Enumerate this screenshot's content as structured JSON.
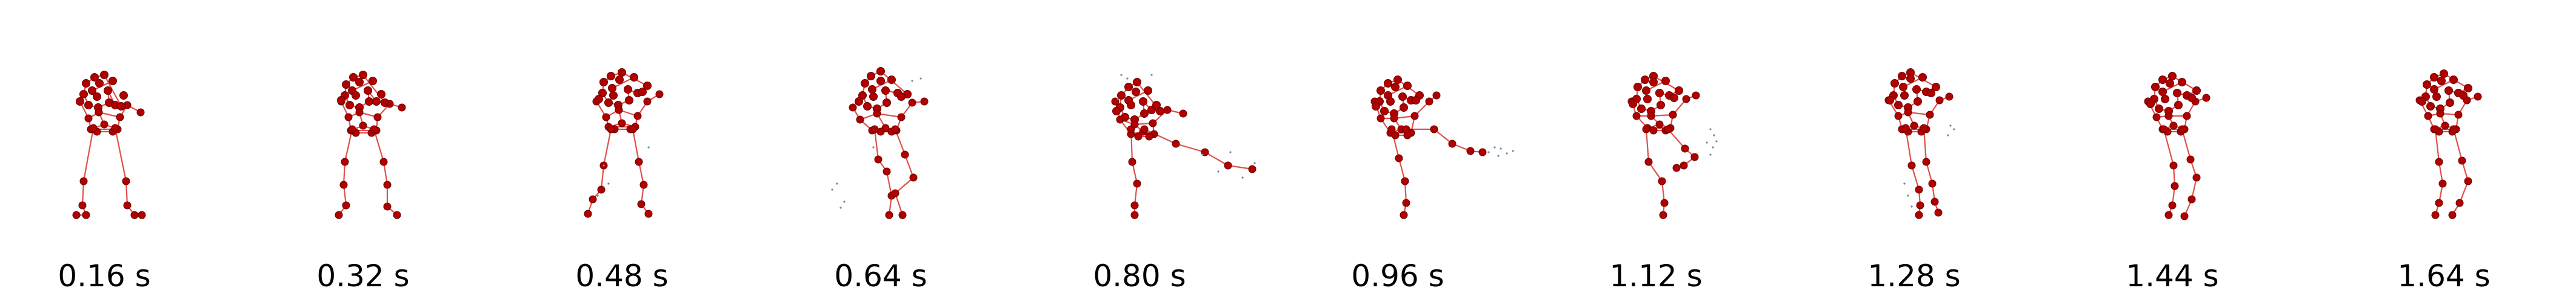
{
  "colors": {
    "limb": "#e0504a",
    "joint": "#b00000",
    "joint_edge": "#6a0000",
    "debris": "#6d8a9c",
    "label": "#000000"
  },
  "frames": [
    {
      "label": "0.16 s"
    },
    {
      "label": "0.32 s"
    },
    {
      "label": "0.48 s"
    },
    {
      "label": "0.64 s"
    },
    {
      "label": "0.80 s"
    },
    {
      "label": "0.96 s"
    },
    {
      "label": "1.12 s"
    },
    {
      "label": "1.28 s"
    },
    {
      "label": "1.44 s"
    },
    {
      "label": "1.64 s"
    }
  ]
}
